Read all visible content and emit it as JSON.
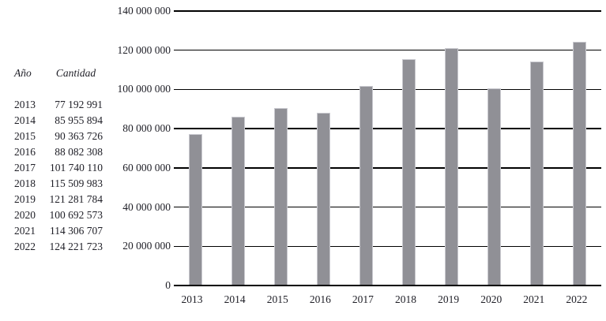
{
  "table": {
    "header": {
      "year": "Año",
      "quantity": "Cantidad"
    },
    "rows": [
      {
        "year": "2013",
        "quantity": "77 192 991"
      },
      {
        "year": "2014",
        "quantity": "85 955 894"
      },
      {
        "year": "2015",
        "quantity": "90 363 726"
      },
      {
        "year": "2016",
        "quantity": "88 082 308"
      },
      {
        "year": "2017",
        "quantity": "101 740 110"
      },
      {
        "year": "2018",
        "quantity": "115 509 983"
      },
      {
        "year": "2019",
        "quantity": "121 281 784"
      },
      {
        "year": "2020",
        "quantity": "100 692 573"
      },
      {
        "year": "2021",
        "quantity": "114 306 707"
      },
      {
        "year": "2022",
        "quantity": "124 221 723"
      }
    ]
  },
  "chart_data": {
    "type": "bar",
    "title": "",
    "xlabel": "",
    "ylabel": "",
    "categories": [
      "2013",
      "2014",
      "2015",
      "2016",
      "2017",
      "2018",
      "2019",
      "2020",
      "2021",
      "2022"
    ],
    "values": [
      77192991,
      85955894,
      90363726,
      88082308,
      101740110,
      115509983,
      121281784,
      100692573,
      114306707,
      124221723
    ],
    "ylim": [
      0,
      140000000
    ],
    "grid": true,
    "legend": false,
    "y_ticks": [
      {
        "value": 140000000,
        "label": "140 000 000"
      },
      {
        "value": 120000000,
        "label": "120 000 000"
      },
      {
        "value": 100000000,
        "label": "100 000 000"
      },
      {
        "value": 80000000,
        "label": "80 000 000"
      },
      {
        "value": 60000000,
        "label": "60 000 000"
      },
      {
        "value": 40000000,
        "label": "40 000 000"
      },
      {
        "value": 20000000,
        "label": "20 000 000"
      },
      {
        "value": 0,
        "label": "0"
      }
    ],
    "colors": {
      "bar_fill": "#909096",
      "bar_edge": "#c9c9cf",
      "gridline": "#000000",
      "axis_line": "#000000",
      "text": "#1e1e26"
    }
  }
}
